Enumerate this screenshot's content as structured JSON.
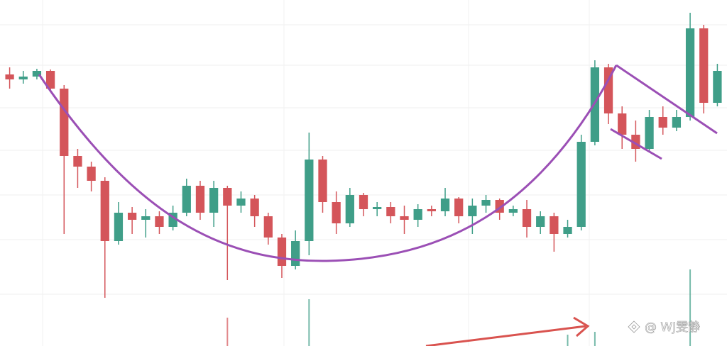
{
  "chart_data": {
    "type": "candlestick",
    "watermark": "@ WJ雯静",
    "categories": [
      null,
      null,
      null,
      null,
      null,
      null,
      null,
      null,
      null,
      null,
      null,
      null,
      null,
      null,
      null,
      null,
      null,
      null,
      null,
      null,
      null,
      null,
      null,
      null,
      null,
      null,
      null,
      null,
      null,
      null,
      null,
      null,
      null,
      null,
      null,
      null,
      null,
      null,
      null,
      null,
      null,
      null,
      null,
      null,
      null,
      null,
      null,
      null,
      null,
      null,
      null,
      null,
      null
    ],
    "open": [
      383,
      376,
      380,
      388,
      363,
      268,
      253,
      233,
      148,
      188,
      178,
      183,
      168,
      188,
      226,
      188,
      223,
      198,
      208,
      183,
      153,
      113,
      148,
      263,
      203,
      173,
      213,
      193,
      196,
      183,
      178,
      193,
      190,
      208,
      183,
      198,
      206,
      188,
      193,
      168,
      183,
      158,
      168,
      288,
      393,
      328,
      298,
      278,
      323,
      308,
      323,
      448,
      343
    ],
    "high": [
      393,
      388,
      391,
      390,
      368,
      278,
      260,
      238,
      203,
      196,
      193,
      190,
      198,
      236,
      233,
      233,
      226,
      218,
      213,
      188,
      158,
      163,
      301,
      268,
      218,
      223,
      216,
      203,
      203,
      198,
      200,
      198,
      223,
      210,
      208,
      213,
      208,
      198,
      206,
      190,
      188,
      178,
      298,
      403,
      398,
      338,
      318,
      333,
      338,
      333,
      470,
      453,
      398
    ],
    "low": [
      363,
      370,
      376,
      358,
      158,
      223,
      218,
      68,
      143,
      158,
      153,
      158,
      163,
      183,
      178,
      168,
      93,
      188,
      168,
      143,
      96,
      108,
      128,
      188,
      158,
      168,
      183,
      183,
      173,
      158,
      168,
      183,
      183,
      173,
      158,
      188,
      178,
      183,
      153,
      158,
      133,
      153,
      163,
      283,
      313,
      278,
      260,
      273,
      298,
      303,
      318,
      328,
      338
    ],
    "close": [
      376,
      380,
      388,
      363,
      268,
      253,
      233,
      148,
      188,
      178,
      183,
      168,
      188,
      226,
      188,
      223,
      198,
      208,
      183,
      153,
      113,
      148,
      263,
      203,
      173,
      213,
      193,
      196,
      183,
      178,
      193,
      190,
      208,
      183,
      198,
      206,
      188,
      193,
      168,
      183,
      158,
      168,
      288,
      393,
      328,
      298,
      278,
      323,
      308,
      323,
      448,
      343,
      388
    ],
    "volume": [
      0,
      0,
      0,
      0,
      0,
      0,
      0,
      0,
      0,
      0,
      0,
      0,
      0,
      0,
      0,
      0,
      40,
      0,
      0,
      0,
      0,
      0,
      66,
      0,
      0,
      0,
      0,
      0,
      0,
      0,
      0,
      0,
      0,
      0,
      0,
      0,
      0,
      0,
      0,
      0,
      0,
      16,
      0,
      20,
      0,
      0,
      0,
      0,
      0,
      0,
      108,
      0,
      0
    ],
    "ylim": [
      0,
      488
    ],
    "yticks": [
      453,
      396,
      336,
      276,
      213,
      150,
      73
    ],
    "grid": true,
    "up_color": "#3f9e88",
    "down_color": "#d4555a"
  }
}
